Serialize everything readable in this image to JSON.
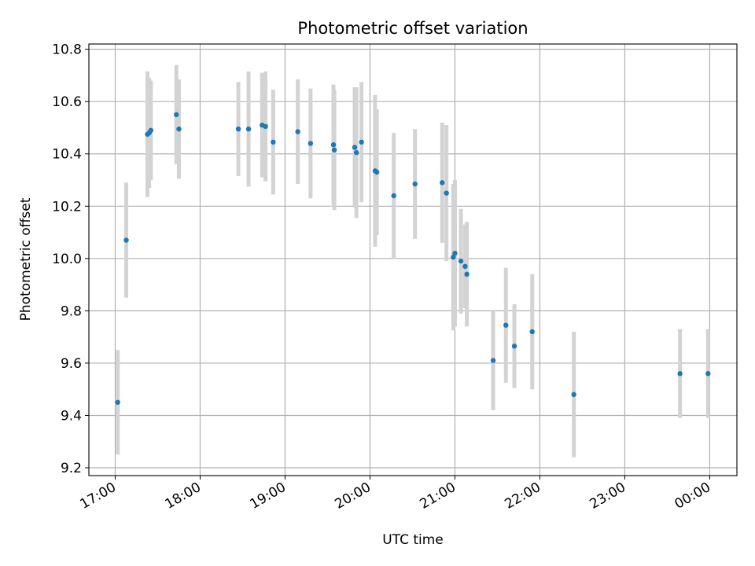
{
  "chart_data": {
    "type": "scatter",
    "title": "Photometric offset variation",
    "xlabel": "UTC time",
    "ylabel": "Photometric offset",
    "x_tick_labels": [
      "17:00",
      "18:00",
      "19:00",
      "20:00",
      "21:00",
      "22:00",
      "23:00",
      "00:00"
    ],
    "x_ticks_hours": [
      17,
      18,
      19,
      20,
      21,
      22,
      23,
      24
    ],
    "xlim_hours": [
      16.69,
      24.32
    ],
    "y_tick_labels": [
      "9.2",
      "9.4",
      "9.6",
      "9.8",
      "10.0",
      "10.2",
      "10.4",
      "10.6",
      "10.8"
    ],
    "y_ticks": [
      9.2,
      9.4,
      9.6,
      9.8,
      10.0,
      10.2,
      10.4,
      10.6,
      10.8
    ],
    "ylim": [
      9.17,
      10.82
    ],
    "grid": true,
    "point_color": "#1f77b4",
    "errorbar_color": "#d3d3d3",
    "points": [
      {
        "t": 17.03,
        "y": 9.45,
        "err": 0.2
      },
      {
        "t": 17.13,
        "y": 10.07,
        "err": 0.22
      },
      {
        "t": 17.38,
        "y": 10.475,
        "err": 0.24
      },
      {
        "t": 17.4,
        "y": 10.48,
        "err": 0.21
      },
      {
        "t": 17.42,
        "y": 10.49,
        "err": 0.19
      },
      {
        "t": 17.72,
        "y": 10.55,
        "err": 0.19
      },
      {
        "t": 17.75,
        "y": 10.495,
        "err": 0.19
      },
      {
        "t": 18.45,
        "y": 10.495,
        "err": 0.18
      },
      {
        "t": 18.57,
        "y": 10.495,
        "err": 0.22
      },
      {
        "t": 18.73,
        "y": 10.51,
        "err": 0.2
      },
      {
        "t": 18.77,
        "y": 10.505,
        "err": 0.21
      },
      {
        "t": 18.86,
        "y": 10.445,
        "err": 0.2
      },
      {
        "t": 19.15,
        "y": 10.485,
        "err": 0.2
      },
      {
        "t": 19.3,
        "y": 10.44,
        "err": 0.21
      },
      {
        "t": 19.57,
        "y": 10.435,
        "err": 0.23
      },
      {
        "t": 19.58,
        "y": 10.415,
        "err": 0.23
      },
      {
        "t": 19.82,
        "y": 10.425,
        "err": 0.23
      },
      {
        "t": 19.84,
        "y": 10.405,
        "err": 0.25
      },
      {
        "t": 19.9,
        "y": 10.445,
        "err": 0.23
      },
      {
        "t": 20.06,
        "y": 10.335,
        "err": 0.29
      },
      {
        "t": 20.08,
        "y": 10.33,
        "err": 0.24
      },
      {
        "t": 20.28,
        "y": 10.24,
        "err": 0.24
      },
      {
        "t": 20.53,
        "y": 10.285,
        "err": 0.21
      },
      {
        "t": 20.85,
        "y": 10.29,
        "err": 0.23
      },
      {
        "t": 20.9,
        "y": 10.25,
        "err": 0.26
      },
      {
        "t": 20.98,
        "y": 10.005,
        "err": 0.28
      },
      {
        "t": 21.0,
        "y": 10.02,
        "err": 0.28
      },
      {
        "t": 21.07,
        "y": 9.99,
        "err": 0.2
      },
      {
        "t": 21.12,
        "y": 9.97,
        "err": 0.16
      },
      {
        "t": 21.14,
        "y": 9.94,
        "err": 0.2
      },
      {
        "t": 21.45,
        "y": 9.61,
        "err": 0.19
      },
      {
        "t": 21.6,
        "y": 9.745,
        "err": 0.22
      },
      {
        "t": 21.7,
        "y": 9.665,
        "err": 0.16
      },
      {
        "t": 21.91,
        "y": 9.72,
        "err": 0.22
      },
      {
        "t": 22.4,
        "y": 9.48,
        "err": 0.24
      },
      {
        "t": 23.65,
        "y": 9.56,
        "err": 0.17
      },
      {
        "t": 23.98,
        "y": 9.56,
        "err": 0.17
      }
    ]
  }
}
